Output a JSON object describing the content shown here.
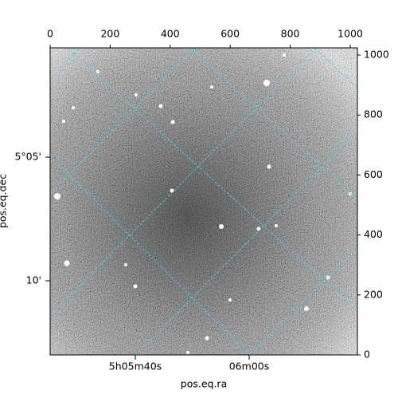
{
  "chart_data": {
    "type": "image",
    "xlabel": "pos.eq.ra",
    "ylabel": "pos.eq.dec",
    "xlim": [
      0,
      1024
    ],
    "ylim": [
      0,
      1024
    ],
    "xticks": [
      0,
      200,
      400,
      600,
      800,
      1000
    ],
    "yticks": [
      0,
      200,
      400,
      600,
      800,
      1000
    ],
    "ra_ticks": [
      "5h05m40s",
      "06m00s"
    ],
    "dec_ticks": [
      "5°05'",
      "10'"
    ]
  }
}
